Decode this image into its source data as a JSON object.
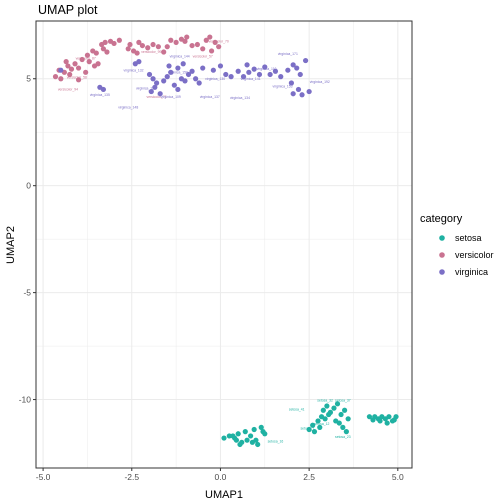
{
  "chart_data": {
    "type": "scatter",
    "title": "UMAP plot",
    "xlabel": "UMAP1",
    "ylabel": "UMAP2",
    "xlim": [
      -5.2,
      5.4
    ],
    "ylim": [
      -13.2,
      7.7
    ],
    "xticks": [
      -5.0,
      -2.5,
      0.0,
      2.5,
      5.0
    ],
    "xtick_labels": [
      "-5.0",
      "-2.5",
      "0.0",
      "2.5",
      "5.0"
    ],
    "yticks": [
      5,
      0,
      -5,
      -10
    ],
    "ytick_labels": [
      "5",
      "0",
      "-5",
      "-10"
    ],
    "grid": true,
    "legend_title": "category",
    "legend_position": "right",
    "colors": {
      "setosa": "#1fb1a2",
      "versicolor": "#c97391",
      "virginica": "#7b6fc6",
      "grid": "#ebebeb",
      "panel_border": "#333333"
    },
    "series": [
      {
        "name": "setosa",
        "color": "#1fb1a2",
        "points": [
          [
            0.1,
            -11.8
          ],
          [
            0.25,
            -11.7
          ],
          [
            0.4,
            -11.8
          ],
          [
            0.5,
            -11.6
          ],
          [
            0.6,
            -12.0
          ],
          [
            0.55,
            -12.1
          ],
          [
            0.7,
            -11.5
          ],
          [
            0.75,
            -11.9
          ],
          [
            0.85,
            -11.7
          ],
          [
            0.95,
            -11.4
          ],
          [
            1.0,
            -11.9
          ],
          [
            1.05,
            -12.1
          ],
          [
            1.2,
            -11.5
          ],
          [
            1.15,
            -11.3
          ],
          [
            1.25,
            -11.6
          ],
          [
            0.45,
            -11.9
          ],
          [
            0.9,
            -12.0
          ],
          [
            0.35,
            -11.7
          ],
          [
            2.5,
            -11.4
          ],
          [
            2.6,
            -11.2
          ],
          [
            2.75,
            -11.0
          ],
          [
            2.65,
            -11.5
          ],
          [
            2.85,
            -10.8
          ],
          [
            2.9,
            -10.5
          ],
          [
            3.0,
            -10.3
          ],
          [
            3.1,
            -10.6
          ],
          [
            2.95,
            -10.9
          ],
          [
            3.2,
            -10.4
          ],
          [
            3.3,
            -10.2
          ],
          [
            3.4,
            -10.7
          ],
          [
            3.5,
            -10.5
          ],
          [
            3.6,
            -10.9
          ],
          [
            3.35,
            -11.1
          ],
          [
            3.55,
            -11.5
          ],
          [
            3.45,
            -11.3
          ],
          [
            3.25,
            -11.0
          ],
          [
            4.2,
            -10.8
          ],
          [
            4.35,
            -10.8
          ],
          [
            4.45,
            -10.9
          ],
          [
            4.55,
            -10.8
          ],
          [
            4.65,
            -10.9
          ],
          [
            4.75,
            -10.8
          ],
          [
            4.85,
            -11.0
          ],
          [
            4.95,
            -10.8
          ],
          [
            4.3,
            -10.95
          ],
          [
            4.5,
            -11.0
          ],
          [
            4.7,
            -11.1
          ],
          [
            4.9,
            -10.95
          ],
          [
            3.05,
            -10.7
          ],
          [
            2.8,
            -11.3
          ]
        ],
        "labels": [
          {
            "text": "setosa_32",
            "at": [
              2.95,
              -10.1
            ],
            "anchor": "middle"
          },
          {
            "text": "setosa_37",
            "at": [
              3.45,
              -10.1
            ],
            "anchor": "middle"
          },
          {
            "text": "setosa_41",
            "at": [
              2.15,
              -10.5
            ],
            "anchor": "middle"
          },
          {
            "text": "setosa_7",
            "at": [
              2.45,
              -11.4
            ],
            "anchor": "middle"
          },
          {
            "text": "setosa_12",
            "at": [
              2.85,
              -11.2
            ],
            "anchor": "middle"
          },
          {
            "text": "setosa_23",
            "at": [
              3.45,
              -11.8
            ],
            "anchor": "middle"
          },
          {
            "text": "setosa_16",
            "at": [
              1.55,
              -12.0
            ],
            "anchor": "middle"
          }
        ]
      },
      {
        "name": "versicolor",
        "color": "#c97391",
        "points": [
          [
            -4.65,
            5.1
          ],
          [
            -4.55,
            5.4
          ],
          [
            -4.4,
            5.3
          ],
          [
            -4.3,
            5.6
          ],
          [
            -4.2,
            5.45
          ],
          [
            -4.1,
            5.7
          ],
          [
            -4.25,
            5.2
          ],
          [
            -4.0,
            5.5
          ],
          [
            -3.9,
            5.9
          ],
          [
            -3.75,
            6.1
          ],
          [
            -3.7,
            5.8
          ],
          [
            -3.55,
            5.6
          ],
          [
            -3.5,
            6.2
          ],
          [
            -3.35,
            6.6
          ],
          [
            -3.25,
            6.7
          ],
          [
            -3.1,
            6.75
          ],
          [
            -3.0,
            6.65
          ],
          [
            -2.85,
            6.8
          ],
          [
            -3.2,
            6.25
          ],
          [
            -3.6,
            6.3
          ],
          [
            -2.55,
            6.6
          ],
          [
            -2.3,
            6.7
          ],
          [
            -2.2,
            6.55
          ],
          [
            -2.05,
            6.45
          ],
          [
            -1.9,
            6.6
          ],
          [
            -1.75,
            6.5
          ],
          [
            -2.35,
            6.2
          ],
          [
            -2.45,
            6.3
          ],
          [
            -1.4,
            6.8
          ],
          [
            -1.25,
            6.7
          ],
          [
            -1.1,
            6.85
          ],
          [
            -1.0,
            6.75
          ],
          [
            -1.5,
            6.5
          ],
          [
            -0.65,
            6.6
          ],
          [
            -0.5,
            6.4
          ],
          [
            -0.4,
            6.8
          ],
          [
            -0.3,
            6.95
          ],
          [
            -0.15,
            6.7
          ],
          [
            -0.05,
            6.5
          ],
          [
            -0.25,
            6.3
          ],
          [
            -3.45,
            5.7
          ],
          [
            -4.5,
            5.0
          ],
          [
            -3.8,
            5.3
          ],
          [
            -4.0,
            4.95
          ],
          [
            -2.6,
            6.4
          ],
          [
            -1.6,
            6.25
          ],
          [
            -0.8,
            6.55
          ],
          [
            -3.3,
            6.4
          ],
          [
            -4.35,
            5.8
          ],
          [
            -0.95,
            6.95
          ]
        ],
        "labels": [
          {
            "text": "versicolor_87",
            "at": [
              -3.8,
              5.9
            ],
            "anchor": "middle"
          },
          {
            "text": "versicolor_99",
            "at": [
              -1.95,
              6.2
            ],
            "anchor": "middle"
          },
          {
            "text": "versicolor_70",
            "at": [
              -0.05,
              6.7
            ],
            "anchor": "middle"
          },
          {
            "text": "versicolor_57",
            "at": [
              -0.5,
              6.0
            ],
            "anchor": "middle"
          },
          {
            "text": "versicolor_58",
            "at": [
              -4.05,
              5.0
            ],
            "anchor": "middle"
          },
          {
            "text": "versicolor_94",
            "at": [
              -4.3,
              4.45
            ],
            "anchor": "middle"
          },
          {
            "text": "versicolor_71",
            "at": [
              -1.8,
              4.1
            ],
            "anchor": "middle"
          }
        ]
      },
      {
        "name": "virginica",
        "color": "#7b6fc6",
        "points": [
          [
            -4.5,
            5.4
          ],
          [
            -3.4,
            4.6
          ],
          [
            -3.3,
            4.5
          ],
          [
            -2.4,
            5.7
          ],
          [
            -2.3,
            5.8
          ],
          [
            -2.0,
            5.2
          ],
          [
            -1.9,
            5.0
          ],
          [
            -1.8,
            4.8
          ],
          [
            -1.85,
            4.6
          ],
          [
            -1.95,
            4.4
          ],
          [
            -1.7,
            4.3
          ],
          [
            -1.6,
            4.9
          ],
          [
            -1.5,
            5.1
          ],
          [
            -1.4,
            5.3
          ],
          [
            -1.3,
            4.7
          ],
          [
            -1.2,
            4.5
          ],
          [
            -1.1,
            5.0
          ],
          [
            -1.0,
            4.9
          ],
          [
            -0.9,
            5.2
          ],
          [
            -0.8,
            5.35
          ],
          [
            -0.7,
            5.0
          ],
          [
            -0.6,
            4.8
          ],
          [
            -1.45,
            5.6
          ],
          [
            -1.2,
            5.5
          ],
          [
            -1.05,
            5.7
          ],
          [
            -0.5,
            5.5
          ],
          [
            -0.2,
            5.4
          ],
          [
            0.0,
            5.6
          ],
          [
            0.15,
            5.2
          ],
          [
            0.3,
            5.1
          ],
          [
            0.5,
            5.35
          ],
          [
            0.65,
            5.1
          ],
          [
            0.8,
            5.3
          ],
          [
            0.95,
            5.45
          ],
          [
            1.1,
            5.2
          ],
          [
            1.25,
            5.55
          ],
          [
            1.4,
            5.2
          ],
          [
            1.55,
            5.35
          ],
          [
            1.7,
            5.1
          ],
          [
            1.9,
            5.4
          ],
          [
            2.05,
            5.65
          ],
          [
            2.15,
            5.5
          ],
          [
            2.25,
            5.2
          ],
          [
            2.0,
            4.8
          ],
          [
            2.2,
            4.5
          ],
          [
            2.05,
            4.3
          ],
          [
            2.3,
            4.25
          ],
          [
            2.5,
            4.4
          ],
          [
            2.4,
            5.85
          ],
          [
            0.75,
            5.65
          ]
        ],
        "labels": [
          {
            "text": "virginica_171",
            "at": [
              1.9,
              6.1
            ],
            "anchor": "middle"
          },
          {
            "text": "virginica_144",
            "at": [
              -1.15,
              6.0
            ],
            "anchor": "middle"
          },
          {
            "text": "virginica_110",
            "at": [
              1.3,
              5.4
            ],
            "anchor": "middle"
          },
          {
            "text": "virginica_132",
            "at": [
              -2.45,
              5.35
            ],
            "anchor": "middle"
          },
          {
            "text": "virginica_126",
            "at": [
              -2.1,
              4.5
            ],
            "anchor": "middle"
          },
          {
            "text": "virginica_130",
            "at": [
              -0.15,
              4.95
            ],
            "anchor": "middle"
          },
          {
            "text": "virginica_141",
            "at": [
              0.85,
              4.95
            ],
            "anchor": "middle"
          },
          {
            "text": "virginica_137",
            "at": [
              -0.3,
              4.1
            ],
            "anchor": "middle"
          },
          {
            "text": "virginica_153",
            "at": [
              1.75,
              4.6
            ],
            "anchor": "middle"
          },
          {
            "text": "virginica_135",
            "at": [
              -3.4,
              4.2
            ],
            "anchor": "middle"
          },
          {
            "text": "virginica_109",
            "at": [
              -1.4,
              4.1
            ],
            "anchor": "middle"
          },
          {
            "text": "virginica_134",
            "at": [
              0.55,
              4.05
            ],
            "anchor": "middle"
          },
          {
            "text": "virginica_148",
            "at": [
              -2.6,
              3.6
            ],
            "anchor": "middle"
          },
          {
            "text": "virginica_150",
            "at": [
              -1.2,
              5.25
            ],
            "anchor": "middle"
          },
          {
            "text": "virginica_192",
            "at": [
              2.8,
              4.8
            ],
            "anchor": "middle"
          }
        ]
      }
    ]
  }
}
